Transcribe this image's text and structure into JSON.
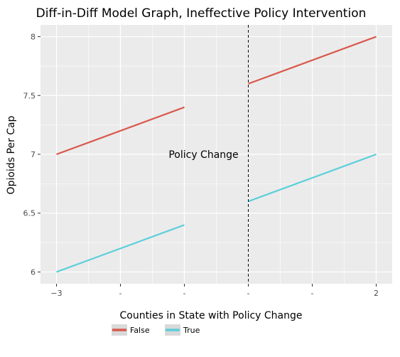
{
  "chart_data": {
    "type": "line",
    "title": "Diff-in-Diff Model Graph, Ineffective Policy Intervention",
    "xlabel": "",
    "ylabel": "Opioids Per Cap",
    "xlim": [
      -3.25,
      2.25
    ],
    "ylim": [
      5.9,
      8.1
    ],
    "x_ticks": [
      {
        "value": -3,
        "label": "−3"
      },
      {
        "value": -2,
        "label": "-"
      },
      {
        "value": -1,
        "label": "-"
      },
      {
        "value": 0,
        "label": "-"
      },
      {
        "value": 1,
        "label": "-"
      },
      {
        "value": 2,
        "label": "2"
      }
    ],
    "y_ticks": [
      {
        "value": 6,
        "label": "6"
      },
      {
        "value": 6.5,
        "label": "6.5"
      },
      {
        "value": 7,
        "label": "7"
      },
      {
        "value": 7.5,
        "label": "7.5"
      },
      {
        "value": 8,
        "label": "8"
      }
    ],
    "series": [
      {
        "name": "False",
        "color": "#d9584c",
        "segments": [
          [
            [
              -3,
              7.0
            ],
            [
              -1,
              7.4
            ]
          ],
          [
            [
              0,
              7.6
            ],
            [
              2,
              8.0
            ]
          ]
        ]
      },
      {
        "name": "True",
        "color": "#5bcfdb",
        "segments": [
          [
            [
              -3,
              6.0
            ],
            [
              -1,
              6.4
            ]
          ],
          [
            [
              0,
              6.6
            ],
            [
              2,
              7.0
            ]
          ]
        ]
      }
    ],
    "vline": {
      "x": 0,
      "style": "dashed",
      "color": "#000000"
    },
    "annotations": [
      {
        "text": "Policy Change",
        "x": -0.7,
        "y": 7.0
      }
    ],
    "legend": {
      "title": "Counties in State with Policy Change",
      "position": "bottom",
      "entries": [
        "False",
        "True"
      ]
    },
    "grid": true,
    "panel_background": "#ebebeb",
    "grid_color": "#ffffff"
  }
}
